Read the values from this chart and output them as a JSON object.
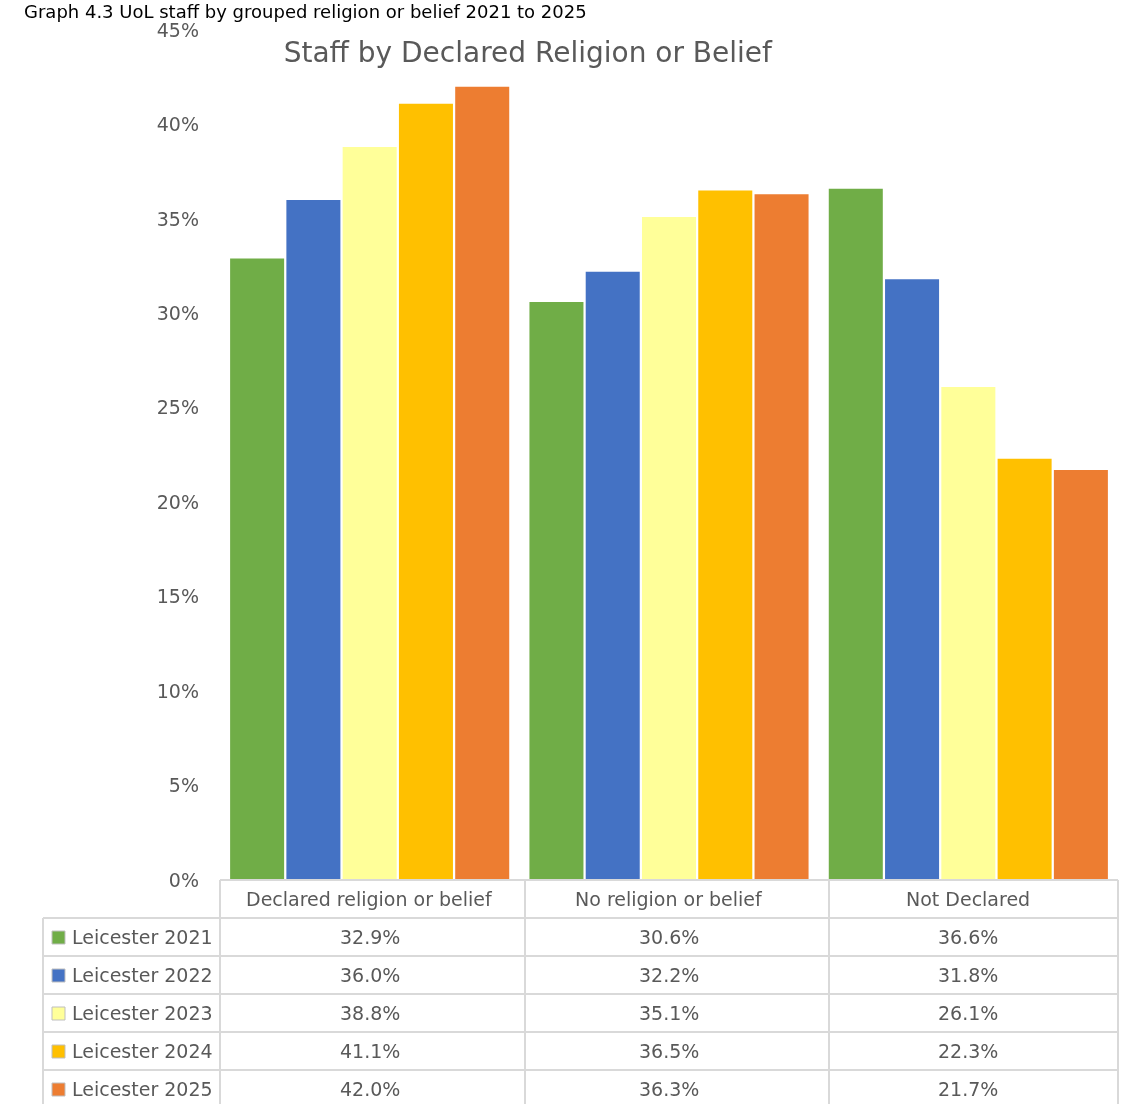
{
  "chart_data": {
    "type": "bar",
    "title": "Staff by Declared Religion or Belief",
    "annotations": [
      "Graph 4.3 UoL staff by grouped religion or belief 2021 to 2025"
    ],
    "categories": [
      "Declared religion or belief",
      "No religion or belief",
      "Not Declared"
    ],
    "series": [
      {
        "name": "Leicester 2021",
        "color": "#70ad47",
        "values": [
          32.9,
          30.6,
          36.6
        ],
        "value_labels": [
          "32.9%",
          "30.6%",
          "36.6%"
        ]
      },
      {
        "name": "Leicester 2022",
        "color": "#4472c4",
        "values": [
          36.0,
          32.2,
          31.8
        ],
        "value_labels": [
          "36.0%",
          "32.2%",
          "31.8%"
        ]
      },
      {
        "name": "Leicester 2023",
        "color": "#ffff99",
        "values": [
          38.8,
          35.1,
          26.1
        ],
        "value_labels": [
          "38.8%",
          "35.1%",
          "26.1%"
        ]
      },
      {
        "name": "Leicester 2024",
        "color": "#ffc000",
        "values": [
          41.1,
          36.5,
          22.3
        ],
        "value_labels": [
          "41.1%",
          "36.5%",
          "22.3%"
        ]
      },
      {
        "name": "Leicester 2025",
        "color": "#ed7d31",
        "values": [
          42.0,
          36.3,
          21.7
        ],
        "value_labels": [
          "42.0%",
          "36.3%",
          "21.7%"
        ]
      }
    ],
    "ylim": [
      0,
      45
    ],
    "yticks": [
      {
        "value": 0,
        "label": "0%"
      },
      {
        "value": 5,
        "label": "5%"
      },
      {
        "value": 10,
        "label": "10%"
      },
      {
        "value": 15,
        "label": "15%"
      },
      {
        "value": 20,
        "label": "20%"
      },
      {
        "value": 25,
        "label": "25%"
      },
      {
        "value": 30,
        "label": "30%"
      },
      {
        "value": 35,
        "label": "35%"
      },
      {
        "value": 40,
        "label": "40%"
      },
      {
        "value": 45,
        "label": "45%"
      }
    ],
    "legend": "bottom"
  }
}
